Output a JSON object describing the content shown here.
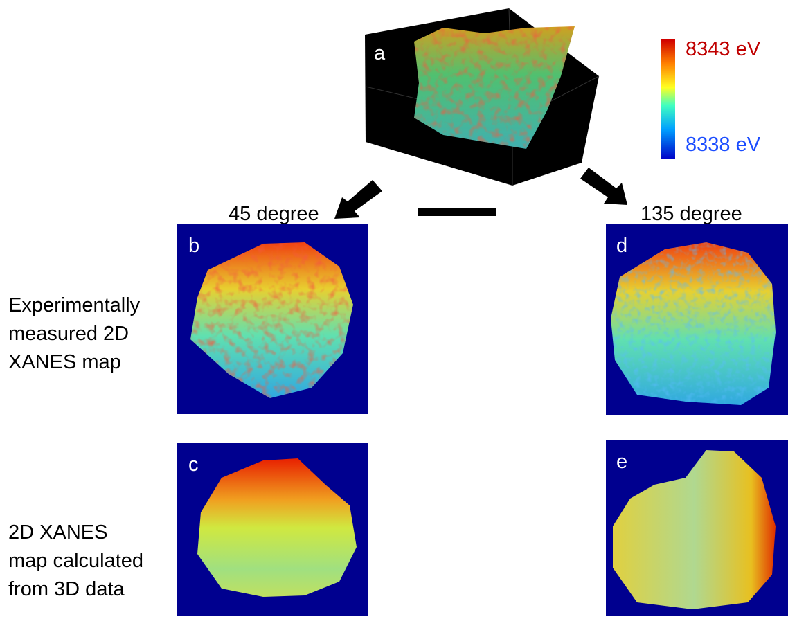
{
  "panels": {
    "a": "a",
    "b": "b",
    "c": "c",
    "d": "d",
    "e": "e"
  },
  "colorbar": {
    "max_label": "8343 eV",
    "min_label": "8338 eV"
  },
  "angles": {
    "left": "45 degree",
    "right": "135 degree"
  },
  "row_labels": {
    "measured": [
      "Experimentally",
      "measured 2D",
      "XANES map"
    ],
    "calculated": [
      "2D XANES",
      "map calculated",
      "from 3D data"
    ]
  }
}
